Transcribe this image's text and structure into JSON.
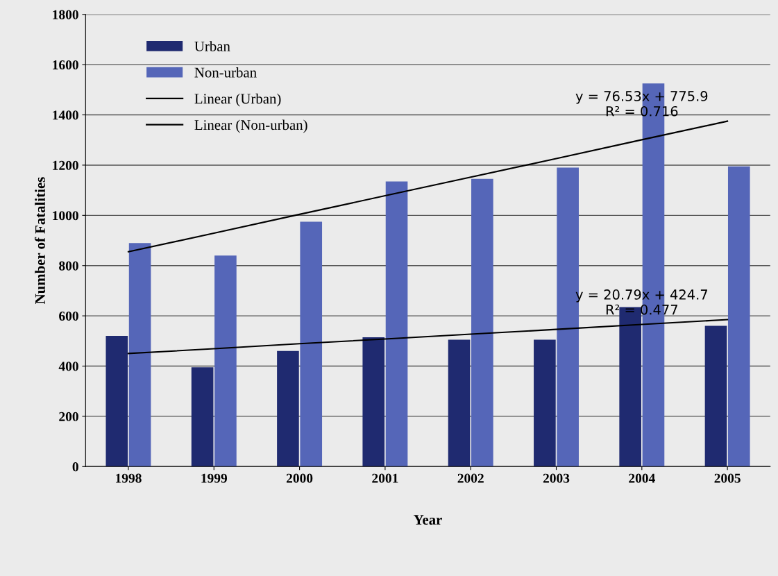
{
  "chart_data": {
    "type": "bar",
    "xlabel": "Year",
    "ylabel": "Number of Fatalities",
    "categories": [
      "1998",
      "1999",
      "2000",
      "2001",
      "2002",
      "2003",
      "2004",
      "2005"
    ],
    "series": [
      {
        "name": "Urban",
        "color": "#1f2a70",
        "values": [
          520,
          395,
          460,
          515,
          505,
          505,
          635,
          560
        ]
      },
      {
        "name": "Non-urban",
        "color": "#5566b8",
        "values": [
          890,
          840,
          975,
          1135,
          1145,
          1190,
          1525,
          1195
        ]
      },
      {
        "name": "Linear (Urban)",
        "type": "line",
        "color": "#000000",
        "values": [
          450,
          469,
          489,
          508,
          527,
          546,
          566,
          585
        ]
      },
      {
        "name": "Linear (Non-urban)",
        "type": "line",
        "color": "#000000",
        "values": [
          855,
          929,
          1004,
          1078,
          1152,
          1226,
          1301,
          1375
        ]
      }
    ],
    "annotations": [
      {
        "text": "y = 76.53x + 775.9\nR² = 0.716",
        "x": "2004",
        "y": 1440
      },
      {
        "text": "y = 20.79x + 424.7\nR² = 0.477",
        "x": "2004",
        "y": 650
      }
    ],
    "ylim": [
      0,
      1800
    ],
    "yticks": [
      0,
      200,
      400,
      600,
      800,
      1000,
      1200,
      1400,
      1600,
      1800
    ],
    "grid": "y",
    "legend": "top left",
    "marker": "none",
    "line_style": "solid"
  }
}
